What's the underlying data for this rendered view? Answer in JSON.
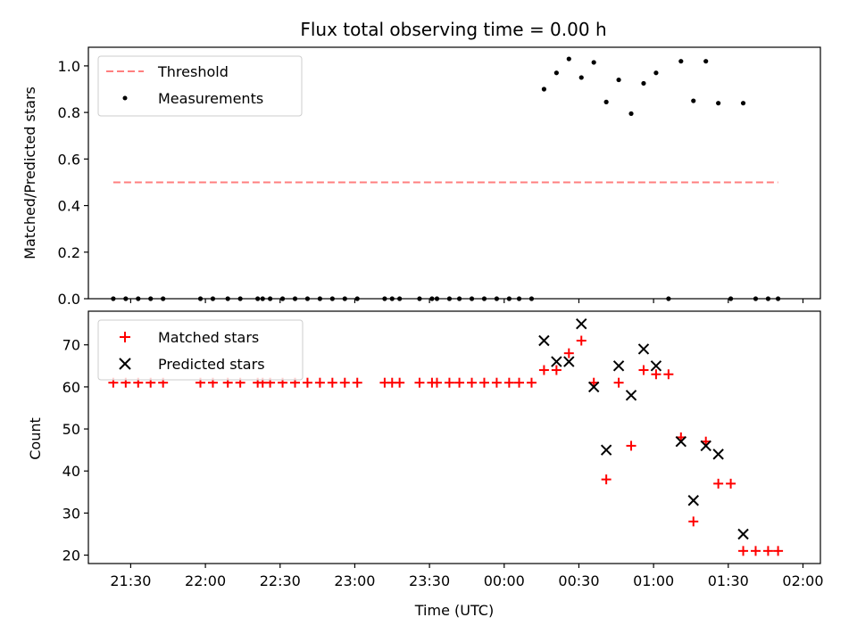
{
  "chart_data": [
    {
      "type": "scatter",
      "title": "Flux total observing time = 0.00 h",
      "xlabel": "",
      "ylabel": "Matched/Predicted stars",
      "ylim": [
        0,
        1.08
      ],
      "xlim": [
        "21:13",
        "02:07"
      ],
      "yticks": [
        0.0,
        0.2,
        0.4,
        0.6,
        0.8,
        1.0
      ],
      "ytick_labels": [
        "0.0",
        "0.2",
        "0.4",
        "0.6",
        "0.8",
        "1.0"
      ],
      "legend": {
        "placement": "top-left",
        "entries": [
          "Threshold",
          "Measurements"
        ]
      },
      "series": [
        {
          "name": "Threshold",
          "kind": "dashed-line",
          "color": "#ff7f7f",
          "x": [
            "21:23",
            "01:50"
          ],
          "y": [
            0.5,
            0.5
          ]
        },
        {
          "name": "Measurements",
          "kind": "dot",
          "color": "#000000",
          "x": [
            "21:23",
            "21:28",
            "21:33",
            "21:38",
            "21:43",
            "21:58",
            "22:03",
            "22:09",
            "22:14",
            "22:21",
            "22:23",
            "22:26",
            "22:31",
            "22:36",
            "22:41",
            "22:46",
            "22:51",
            "22:56",
            "23:01",
            "23:12",
            "23:15",
            "23:18",
            "23:26",
            "23:31",
            "23:33",
            "23:38",
            "23:42",
            "23:47",
            "23:52",
            "23:57",
            "24:02",
            "24:06",
            "24:11",
            "24:16",
            "24:21",
            "24:26",
            "24:31",
            "24:36",
            "24:41",
            "24:46",
            "24:51",
            "24:56",
            "25:01",
            "25:06",
            "25:11",
            "25:16",
            "25:21",
            "25:26",
            "25:31",
            "25:36",
            "25:41",
            "25:46",
            "25:50"
          ],
          "y": [
            0,
            0,
            0,
            0,
            0,
            0,
            0,
            0,
            0,
            0,
            0,
            0,
            0,
            0,
            0,
            0,
            0,
            0,
            0,
            0,
            0,
            0,
            0,
            0,
            0,
            0,
            0,
            0,
            0,
            0,
            0,
            0,
            0,
            0.9,
            0.97,
            1.03,
            0.95,
            1.015,
            0.845,
            0.94,
            0.795,
            0.925,
            0.97,
            0,
            1.02,
            0.85,
            1.02,
            0.84,
            0,
            0.84,
            0,
            0,
            0
          ]
        }
      ]
    },
    {
      "type": "scatter",
      "title": "",
      "xlabel": "Time (UTC)",
      "ylabel": "Count",
      "ylim": [
        18,
        78
      ],
      "xlim": [
        "21:13",
        "02:07"
      ],
      "xticks": [
        "21:30",
        "22:00",
        "22:30",
        "23:00",
        "23:30",
        "00:00",
        "00:30",
        "01:00",
        "01:30",
        "02:00"
      ],
      "yticks": [
        20,
        30,
        40,
        50,
        60,
        70
      ],
      "ytick_labels": [
        "20",
        "30",
        "40",
        "50",
        "60",
        "70"
      ],
      "legend": {
        "placement": "top-left",
        "entries": [
          "Matched stars",
          "Predicted stars"
        ]
      },
      "series": [
        {
          "name": "Matched stars",
          "kind": "plus",
          "color": "#ff0000",
          "x": [
            "21:23",
            "21:28",
            "21:33",
            "21:38",
            "21:43",
            "21:58",
            "22:03",
            "22:09",
            "22:14",
            "22:21",
            "22:23",
            "22:26",
            "22:31",
            "22:36",
            "22:41",
            "22:46",
            "22:51",
            "22:56",
            "23:01",
            "23:12",
            "23:15",
            "23:18",
            "23:26",
            "23:31",
            "23:33",
            "23:38",
            "23:42",
            "23:47",
            "23:52",
            "23:57",
            "24:02",
            "24:06",
            "24:11",
            "24:16",
            "24:21",
            "24:26",
            "24:31",
            "24:36",
            "24:41",
            "24:46",
            "24:51",
            "24:56",
            "25:01",
            "25:06",
            "25:11",
            "25:16",
            "25:21",
            "25:26",
            "25:31",
            "25:36",
            "25:41",
            "25:46",
            "25:50"
          ],
          "y": [
            61,
            61,
            61,
            61,
            61,
            61,
            61,
            61,
            61,
            61,
            61,
            61,
            61,
            61,
            61,
            61,
            61,
            61,
            61,
            61,
            61,
            61,
            61,
            61,
            61,
            61,
            61,
            61,
            61,
            61,
            61,
            61,
            61,
            64,
            64,
            68,
            71,
            61,
            38,
            61,
            46,
            64,
            63,
            63,
            48,
            28,
            47,
            37,
            37,
            21,
            21,
            21,
            21
          ]
        },
        {
          "name": "Predicted stars",
          "kind": "x",
          "color": "#000000",
          "x": [
            "24:16",
            "24:21",
            "24:26",
            "24:31",
            "24:36",
            "24:41",
            "24:46",
            "24:51",
            "24:56",
            "25:01",
            "25:11",
            "25:16",
            "25:21",
            "25:26",
            "25:36"
          ],
          "y": [
            71,
            66,
            66,
            75,
            60,
            45,
            65,
            58,
            69,
            65,
            47,
            33,
            46,
            44,
            25
          ]
        }
      ]
    }
  ]
}
